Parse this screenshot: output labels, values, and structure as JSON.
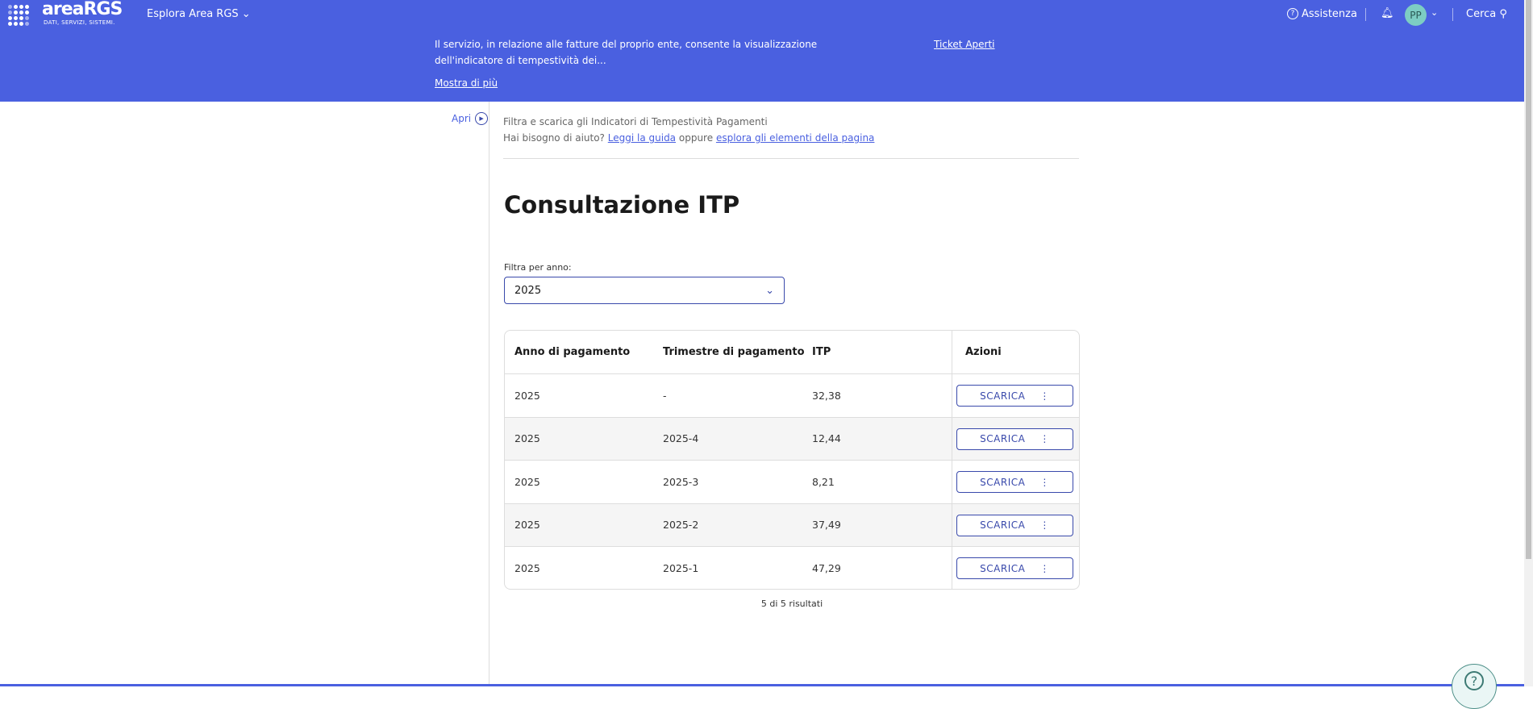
{
  "header": {
    "logo_text": "areaRGS",
    "logo_subtitle": "DATI, SERVIZI, SISTEMI.",
    "explore": "Esplora Area RGS",
    "description": "Il servizio, in relazione alle fatture del proprio ente, consente la visualizzazione dell'indicatore di tempestività dei...",
    "show_more": "Mostra di più",
    "ticket": "Ticket Aperti",
    "help": "Assistenza",
    "avatar": "PP",
    "search": "Cerca",
    "accent": "#4a60e0"
  },
  "sidebar": {
    "open": "Apri"
  },
  "intro": {
    "subtitle": "Filtra e scarica gli Indicatori di Tempestività Pagamenti",
    "help_prefix": "Hai bisogno di aiuto?",
    "guide_link": "Leggi la guida",
    "or": "oppure",
    "explore_link": "esplora gli elementi della pagina"
  },
  "page": {
    "title": "Consultazione ITP",
    "filter_label": "Filtra per anno:",
    "filter_value": "2025"
  },
  "table": {
    "headers": [
      "Anno di pagamento",
      "Trimestre di pagamento",
      "ITP",
      "Azioni"
    ],
    "rows": [
      [
        "2025",
        "-",
        "32,38"
      ],
      [
        "2025",
        "2025-4",
        "12,44"
      ],
      [
        "2025",
        "2025-3",
        "8,21"
      ],
      [
        "2025",
        "2025-2",
        "37,49"
      ],
      [
        "2025",
        "2025-1",
        "47,29"
      ]
    ],
    "action_label": "SCARICA",
    "results": "5 di 5 risultati"
  }
}
